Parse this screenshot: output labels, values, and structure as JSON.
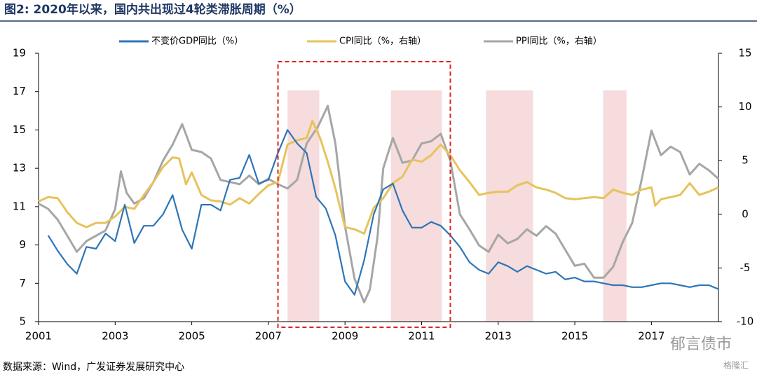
{
  "chart_data": {
    "type": "line",
    "title": "图2: 2020年以来，国内共出现过4轮类滞胀周期（%）",
    "source": "数据来源：Wind，广发证券发展研究中心",
    "watermarks": [
      "郁言债市",
      "格隆汇"
    ],
    "xlim": [
      2001,
      2018.75
    ],
    "xticks": [
      2001,
      2003,
      2005,
      2007,
      2009,
      2011,
      2013,
      2015,
      2017
    ],
    "ylim": [
      5,
      19
    ],
    "yticks": [
      5,
      7,
      9,
      11,
      13,
      15,
      17,
      19
    ],
    "y2lim": [
      -10,
      15
    ],
    "y2ticks": [
      -10,
      -5,
      0,
      5,
      10,
      15
    ],
    "grid": false,
    "legend": "top",
    "shaded_periods": [
      [
        2007.5,
        2008.33
      ],
      [
        2010.2,
        2011.53
      ],
      [
        2012.68,
        2013.91
      ],
      [
        2015.74,
        2016.35
      ]
    ],
    "shade_color": "#f6dcdc",
    "highlight_box": {
      "x": [
        2007.25,
        2011.75
      ],
      "color": "#e02020"
    },
    "series": [
      {
        "name": "不变价GDP同比（%）",
        "color": "#2e75b6",
        "x": [
          2001.25,
          2001.5,
          2001.75,
          2002.0,
          2002.25,
          2002.5,
          2002.75,
          2003.0,
          2003.25,
          2003.5,
          2003.75,
          2004.0,
          2004.25,
          2004.5,
          2004.75,
          2005.0,
          2005.25,
          2005.5,
          2005.75,
          2006.0,
          2006.25,
          2006.5,
          2006.75,
          2007.0,
          2007.25,
          2007.5,
          2007.75,
          2008.0,
          2008.25,
          2008.5,
          2008.75,
          2009.0,
          2009.25,
          2009.5,
          2009.75,
          2010.0,
          2010.25,
          2010.5,
          2010.75,
          2011.0,
          2011.25,
          2011.5,
          2011.75,
          2012.0,
          2012.25,
          2012.5,
          2012.75,
          2013.0,
          2013.25,
          2013.5,
          2013.75,
          2014.0,
          2014.25,
          2014.5,
          2014.75,
          2015.0,
          2015.25,
          2015.5,
          2015.75,
          2016.0,
          2016.25,
          2016.5,
          2016.75,
          2017.0,
          2017.25,
          2017.5,
          2017.75,
          2018.0,
          2018.25,
          2018.5,
          2018.75
        ],
        "values": [
          9.5,
          8.7,
          8.0,
          7.5,
          8.9,
          8.8,
          9.6,
          9.2,
          11.1,
          9.1,
          10.0,
          10.0,
          10.6,
          11.6,
          9.8,
          8.8,
          11.1,
          11.1,
          10.8,
          12.4,
          12.5,
          13.7,
          12.2,
          12.4,
          13.8,
          15.0,
          14.3,
          13.8,
          11.5,
          10.9,
          9.5,
          7.1,
          6.4,
          8.2,
          10.6,
          11.9,
          12.2,
          10.8,
          9.9,
          9.9,
          10.2,
          10.0,
          9.5,
          8.9,
          8.1,
          7.7,
          7.5,
          8.1,
          7.9,
          7.6,
          7.9,
          7.7,
          7.5,
          7.6,
          7.2,
          7.3,
          7.1,
          7.1,
          7.0,
          6.9,
          6.9,
          6.8,
          6.8,
          6.9,
          7.0,
          7.0,
          6.9,
          6.8,
          6.9,
          6.9,
          6.7
        ]
      },
      {
        "name": "CPI同比（%，右轴）",
        "color": "#e6c35c",
        "axis": "y2",
        "x": [
          2001.0,
          2001.25,
          2001.5,
          2001.75,
          2002.0,
          2002.25,
          2002.5,
          2002.75,
          2003.0,
          2003.25,
          2003.5,
          2003.75,
          2004.0,
          2004.25,
          2004.5,
          2004.67,
          2004.85,
          2005.0,
          2005.25,
          2005.5,
          2005.75,
          2006.0,
          2006.25,
          2006.5,
          2006.75,
          2007.0,
          2007.25,
          2007.5,
          2007.75,
          2008.0,
          2008.15,
          2008.35,
          2008.55,
          2008.75,
          2009.0,
          2009.25,
          2009.5,
          2009.75,
          2010.0,
          2010.25,
          2010.5,
          2010.75,
          2011.0,
          2011.25,
          2011.5,
          2011.75,
          2012.0,
          2012.25,
          2012.5,
          2012.75,
          2013.0,
          2013.25,
          2013.5,
          2013.75,
          2014.0,
          2014.25,
          2014.5,
          2014.75,
          2015.0,
          2015.25,
          2015.5,
          2015.75,
          2016.0,
          2016.25,
          2016.5,
          2016.75,
          2017.0,
          2017.1,
          2017.25,
          2017.5,
          2017.75,
          2018.0,
          2018.25,
          2018.5,
          2018.75
        ],
        "values": [
          1.2,
          1.6,
          1.5,
          0.2,
          -0.8,
          -1.2,
          -0.8,
          -0.8,
          -0.2,
          0.7,
          0.5,
          1.8,
          3.0,
          4.4,
          5.3,
          5.2,
          2.8,
          3.9,
          1.8,
          1.3,
          1.2,
          0.9,
          1.5,
          1.0,
          1.9,
          2.7,
          3.0,
          6.5,
          6.9,
          7.1,
          8.7,
          7.1,
          4.9,
          2.4,
          -1.2,
          -1.4,
          -1.8,
          0.6,
          1.5,
          2.9,
          3.5,
          5.1,
          4.9,
          5.5,
          6.5,
          5.5,
          4.1,
          3.0,
          1.8,
          2.0,
          2.1,
          2.1,
          2.7,
          3.0,
          2.5,
          2.3,
          2.0,
          1.5,
          1.4,
          1.5,
          1.6,
          1.5,
          2.3,
          2.0,
          1.8,
          2.3,
          2.5,
          0.8,
          1.4,
          1.6,
          1.8,
          2.9,
          1.8,
          2.1,
          2.5
        ]
      },
      {
        "name": "PPI同比（%，右轴）",
        "color": "#a6a6a6",
        "axis": "y2",
        "x": [
          2001.0,
          2001.25,
          2001.5,
          2001.75,
          2002.0,
          2002.25,
          2002.5,
          2002.75,
          2003.0,
          2003.15,
          2003.3,
          2003.5,
          2003.75,
          2004.0,
          2004.25,
          2004.5,
          2004.75,
          2005.0,
          2005.25,
          2005.5,
          2005.75,
          2006.0,
          2006.25,
          2006.5,
          2006.75,
          2007.0,
          2007.25,
          2007.5,
          2007.75,
          2008.0,
          2008.3,
          2008.55,
          2008.75,
          2009.0,
          2009.25,
          2009.5,
          2009.65,
          2009.85,
          2010.0,
          2010.25,
          2010.5,
          2010.75,
          2011.0,
          2011.25,
          2011.5,
          2011.75,
          2012.0,
          2012.25,
          2012.5,
          2012.75,
          2013.0,
          2013.25,
          2013.5,
          2013.75,
          2014.0,
          2014.25,
          2014.5,
          2014.75,
          2015.0,
          2015.25,
          2015.5,
          2015.75,
          2016.0,
          2016.25,
          2016.5,
          2016.75,
          2017.0,
          2017.25,
          2017.5,
          2017.75,
          2018.0,
          2018.25,
          2018.5,
          2018.75
        ],
        "values": [
          1.0,
          0.5,
          -0.5,
          -2.0,
          -3.5,
          -2.5,
          -2.0,
          -1.5,
          0.5,
          4.0,
          2.0,
          1.0,
          1.5,
          3.0,
          5.0,
          6.5,
          8.4,
          6.0,
          5.8,
          5.2,
          3.2,
          3.0,
          2.8,
          3.6,
          2.8,
          3.3,
          2.8,
          2.4,
          3.2,
          6.6,
          8.2,
          10.1,
          6.6,
          -1.1,
          -6.0,
          -8.2,
          -7.0,
          -2.1,
          4.3,
          7.1,
          4.8,
          5.0,
          6.6,
          6.8,
          7.5,
          5.0,
          0.0,
          -1.4,
          -2.9,
          -3.5,
          -1.9,
          -2.7,
          -2.3,
          -1.4,
          -2.0,
          -1.1,
          -1.8,
          -3.3,
          -4.8,
          -4.6,
          -5.9,
          -5.9,
          -4.9,
          -2.6,
          -0.8,
          3.3,
          7.8,
          5.5,
          6.3,
          5.8,
          3.7,
          4.7,
          4.1,
          3.3
        ]
      }
    ]
  }
}
